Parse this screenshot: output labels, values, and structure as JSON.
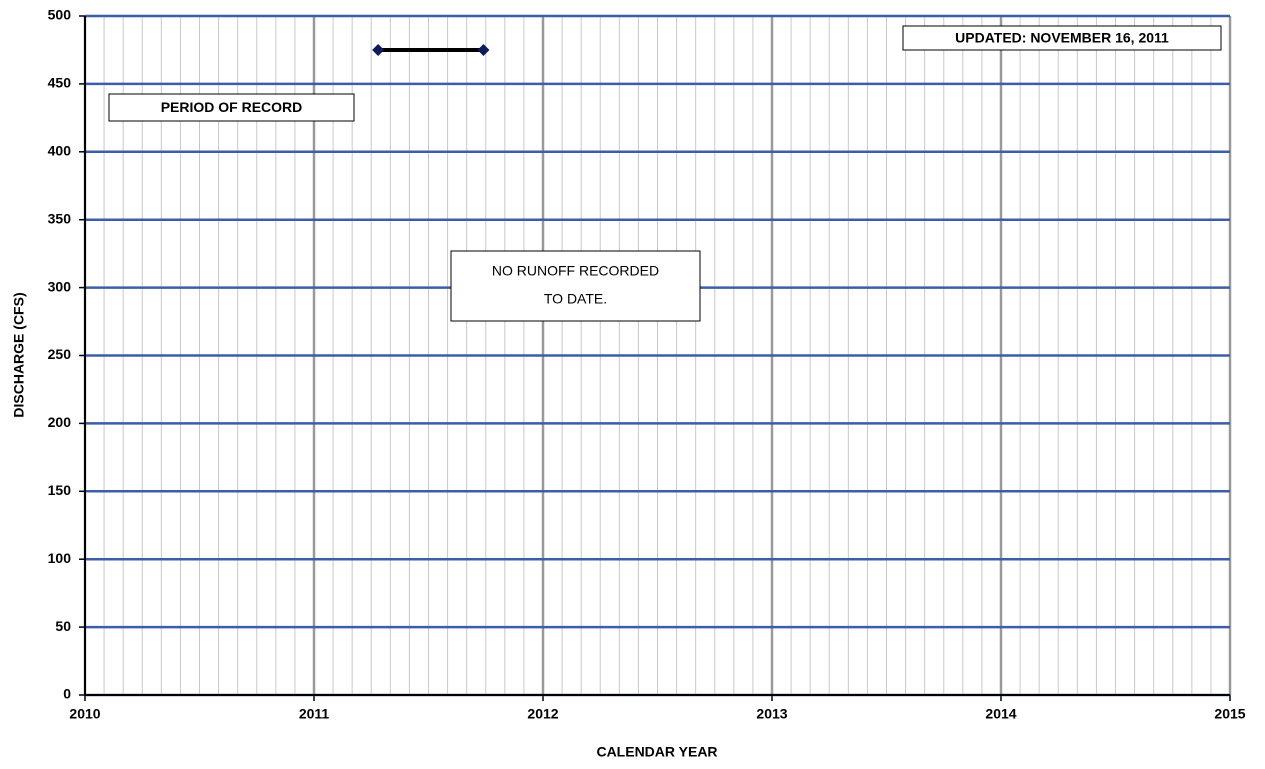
{
  "chart_data": {
    "type": "line",
    "xlabel": "CALENDAR YEAR",
    "ylabel": "DISCHARGE (CFS)",
    "xlim": [
      2010,
      2015
    ],
    "xticks": [
      2010,
      2011,
      2012,
      2013,
      2014,
      2015
    ],
    "ylim": [
      0,
      500
    ],
    "yticks": [
      0,
      50,
      100,
      150,
      200,
      250,
      300,
      350,
      400,
      450,
      500
    ],
    "grid": true,
    "x_minor_grid": {
      "per_tick": 12
    },
    "series": [
      {
        "x": [
          2011.28,
          2011.74
        ],
        "values": [
          475,
          475
        ],
        "color": "#000000",
        "marker_color": "#0d1a5c"
      }
    ],
    "annotations": [
      {
        "text": "UPDATED:  NOVEMBER 16, 2011"
      },
      {
        "text": "PERIOD OF RECORD"
      },
      {
        "lines": [
          "NO RUNOFF RECORDED",
          "TO DATE."
        ]
      }
    ]
  }
}
